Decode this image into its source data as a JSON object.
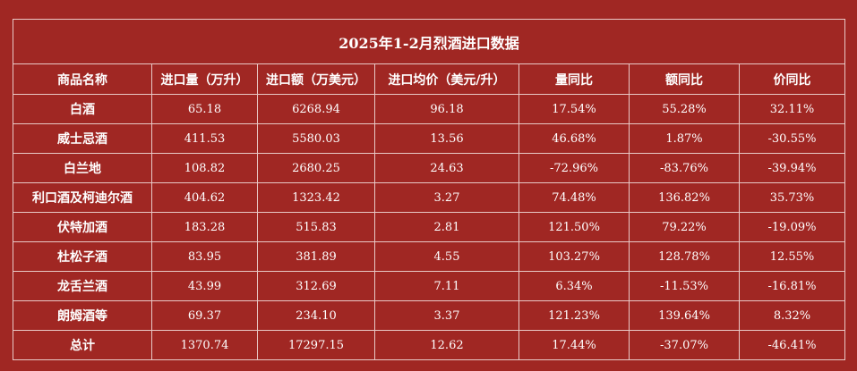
{
  "title": "2025年1-2月烈酒进口数据",
  "headers": [
    "商品名称",
    "进口量（万升）",
    "进口额（万美元）",
    "进口均价（美元/升）",
    "量同比",
    "额同比",
    "价同比"
  ],
  "rows": [
    [
      "白酒",
      "65.18",
      "6268.94",
      "96.18",
      "17.54%",
      "55.28%",
      "32.11%"
    ],
    [
      "威士忌酒",
      "411.53",
      "5580.03",
      "13.56",
      "46.68%",
      "1.87%",
      "-30.55%"
    ],
    [
      "白兰地",
      "108.82",
      "2680.25",
      "24.63",
      "-72.96%",
      "-83.76%",
      "-39.94%"
    ],
    [
      "利口酒及柯迪尔酒",
      "404.62",
      "1323.42",
      "3.27",
      "74.48%",
      "136.82%",
      "35.73%"
    ],
    [
      "伏特加酒",
      "183.28",
      "515.83",
      "2.81",
      "121.50%",
      "79.22%",
      "-19.09%"
    ],
    [
      "杜松子酒",
      "83.95",
      "381.89",
      "4.55",
      "103.27%",
      "128.78%",
      "12.55%"
    ],
    [
      "龙舌兰酒",
      "43.99",
      "312.69",
      "7.11",
      "6.34%",
      "-11.53%",
      "-16.81%"
    ],
    [
      "朗姆酒等",
      "69.37",
      "234.10",
      "3.37",
      "121.23%",
      "139.64%",
      "8.32%"
    ],
    [
      "总计",
      "1370.74",
      "17297.15",
      "12.62",
      "17.44%",
      "-37.07%",
      "-46.41%"
    ]
  ],
  "colors": {
    "background": "#a02723",
    "border": "#e9c9c6",
    "text": "#ffffff"
  }
}
